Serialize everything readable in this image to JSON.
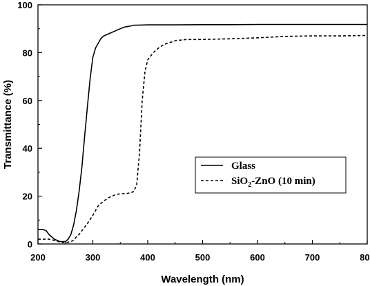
{
  "chart_data": {
    "type": "line",
    "xlabel": "Wavelength (nm)",
    "ylabel": "Transmittance (%)",
    "xlim": [
      200,
      800
    ],
    "ylim": [
      0,
      100
    ],
    "x_ticks": [
      200,
      300,
      400,
      500,
      600,
      700,
      800
    ],
    "y_ticks": [
      0,
      20,
      40,
      60,
      80,
      100
    ],
    "grid": false,
    "legend_position": "center-right",
    "series": [
      {
        "name": "Glass",
        "style": "solid",
        "color": "#000000",
        "x": [
          200,
          210,
          215,
          220,
          230,
          240,
          250,
          255,
          260,
          265,
          270,
          275,
          280,
          285,
          290,
          295,
          300,
          305,
          310,
          315,
          320,
          325,
          330,
          335,
          340,
          345,
          350,
          355,
          360,
          365,
          370,
          375,
          380,
          400,
          450,
          500,
          550,
          600,
          650,
          700,
          750,
          790,
          800
        ],
        "y": [
          6,
          6,
          5.5,
          4,
          2,
          1,
          1,
          2,
          4,
          8,
          14,
          22,
          32,
          45,
          57,
          69,
          78,
          82,
          84,
          86,
          87,
          87.5,
          88,
          88.5,
          89,
          89.5,
          90,
          90.5,
          90.8,
          91,
          91.2,
          91.5,
          91.5,
          91.6,
          91.6,
          91.7,
          91.7,
          91.8,
          91.8,
          91.8,
          91.8,
          91.8,
          91.8
        ]
      },
      {
        "name": "SiO2-ZnO (10 min)",
        "name_base": "SiO",
        "name_sub": "2",
        "name_rest": "-ZnO (10 min)",
        "style": "dashed",
        "color": "#000000",
        "x": [
          200,
          210,
          220,
          230,
          240,
          250,
          260,
          265,
          270,
          275,
          280,
          290,
          300,
          310,
          320,
          330,
          340,
          350,
          360,
          370,
          375,
          380,
          385,
          390,
          395,
          400,
          410,
          420,
          430,
          440,
          450,
          470,
          500,
          550,
          600,
          650,
          700,
          750,
          800
        ],
        "y": [
          2,
          2,
          2,
          1.5,
          0.8,
          0.5,
          1,
          1.5,
          3,
          4,
          5.5,
          8.5,
          12,
          16,
          18,
          19.5,
          20.5,
          21,
          21,
          21.5,
          22,
          25,
          38,
          60,
          72,
          77,
          80,
          82,
          83.5,
          84.2,
          85,
          85.5,
          85.5,
          85.8,
          86.2,
          86.8,
          87,
          87,
          87.2
        ]
      }
    ]
  }
}
